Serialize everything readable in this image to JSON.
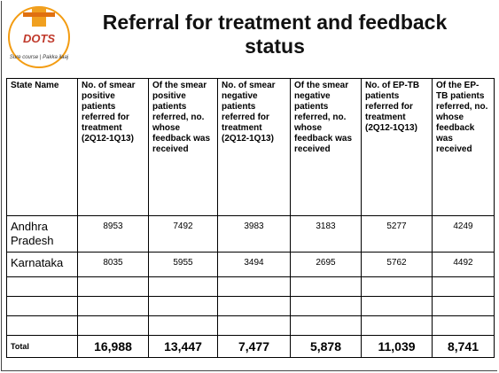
{
  "logo": {
    "text": "DOTS",
    "tagline": "Sure course | Pakka ilaaj"
  },
  "title": "Referral for treatment and feedback status",
  "table": {
    "header": [
      "State Name",
      "No. of smear positive patients referred for treatment (2Q12-1Q13)",
      "Of the smear positive patients referred, no. whose feedback was received",
      "No. of smear negative patients referred for treatment (2Q12-1Q13)",
      "Of the smear negative patients referred, no. whose feedback was received",
      "No. of EP-TB patients referred for treatment (2Q12-1Q13)",
      "Of the EP-TB patients referred, no. whose feedback was received"
    ],
    "rows": [
      [
        "Andhra Pradesh",
        "8953",
        "7492",
        "3983",
        "3183",
        "5277",
        "4249"
      ],
      [
        "Karnataka",
        "8035",
        "5955",
        "3494",
        "2695",
        "5762",
        "4492"
      ]
    ],
    "total": [
      "Total",
      "16,988",
      "13,447",
      "7,477",
      "5,878",
      "11,039",
      "8,741"
    ]
  }
}
